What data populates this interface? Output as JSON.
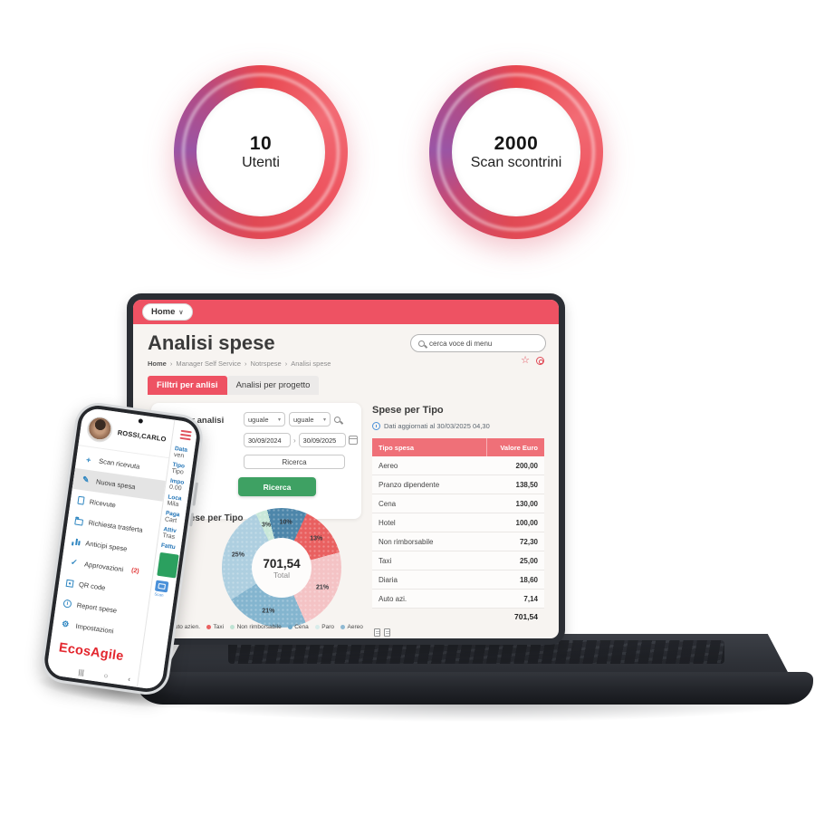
{
  "icons": {
    "star": "☆",
    "home_chevron": "∨",
    "breadcrumb_sep": "›",
    "dropdown_arrow": "▾",
    "date_sep": "›"
  },
  "badges": [
    {
      "value": "10",
      "label": "Utenti"
    },
    {
      "value": "2000",
      "label": "Scan scontrini"
    }
  ],
  "laptop": {
    "home_tab": "Home",
    "title": "Analisi spese",
    "breadcrumb": [
      "Home",
      "Manager Self Service",
      "Notrspese",
      "Analisi spese"
    ],
    "search_placeholder": "cerca voce di menu",
    "tabs": [
      {
        "label": "Filltri per anlisi",
        "active": true
      },
      {
        "label": "Analisi per progetto",
        "active": false
      }
    ],
    "filter_card": {
      "title": "Filtri per analisi",
      "operators": [
        "uguale",
        "uguale"
      ],
      "date_from": "30/09/2024",
      "date_to": "30/09/2025",
      "search_button": "Ricerca",
      "search_button_primary": "Ricerca"
    },
    "chart_heading": "Spese per Tipo",
    "table_panel": {
      "title": "Spese per Tipo",
      "updated": "Dati aggiornati al 30/03/2025 04,30",
      "columns": [
        "Tipo spesa",
        "Valore Euro"
      ],
      "rows": [
        [
          "Aereo",
          "200,00"
        ],
        [
          "Pranzo dipendente",
          "138,50"
        ],
        [
          "Cena",
          "130,00"
        ],
        [
          "Hotel",
          "100,00"
        ],
        [
          "Non rimborsabile",
          "72,30"
        ],
        [
          "Taxi",
          "25,00"
        ],
        [
          "Diaria",
          "18,60"
        ],
        [
          "Auto azi.",
          "7,14"
        ]
      ],
      "total": "701,54"
    }
  },
  "phone": {
    "user_name": "ROSSI,CARLO",
    "menu": [
      {
        "icon": "plus",
        "label": "Scan ricevuta"
      },
      {
        "icon": "compose",
        "label": "Nuova spesa",
        "active": true
      },
      {
        "icon": "document",
        "label": "Ricevute"
      },
      {
        "icon": "folder",
        "label": "Richiesta trasferta"
      },
      {
        "icon": "chart",
        "label": "Anticipi spese"
      },
      {
        "icon": "check",
        "label": "Approvazioni",
        "badge": "(2)"
      },
      {
        "icon": "qr",
        "label": "QR code"
      },
      {
        "icon": "info",
        "label": "Report spese"
      },
      {
        "icon": "gear",
        "label": "Impostazioni"
      }
    ],
    "logo": "EcosAgile",
    "nav": [
      "|||",
      "○",
      "‹"
    ],
    "form_peek": {
      "fields": [
        {
          "label": "Data",
          "value": "ven"
        },
        {
          "label": "Tipo",
          "value": "Tipo"
        },
        {
          "label": "Impo",
          "value": "0.00"
        },
        {
          "label": "Loca",
          "value": "Mila"
        },
        {
          "label": "Paga",
          "value": "Cart"
        },
        {
          "label": "Attiv",
          "value": "Tras"
        },
        {
          "label": "Fattu",
          "value": ""
        }
      ],
      "scan_label": "Scan"
    }
  },
  "chart_data": [
    {
      "type": "donut",
      "title": "Spese per Tipo",
      "center_value": "701,54",
      "center_label": "Total",
      "slices": [
        {
          "pct": 10,
          "color": "#4d86aa"
        },
        {
          "pct": 13,
          "color": "#e96060"
        },
        {
          "pct": 21,
          "color": "#f4c3c5"
        },
        {
          "pct": 21,
          "color": "#84b5cf"
        },
        {
          "pct": 25,
          "color": "#aecfe0"
        },
        {
          "pct": 3,
          "color": "#c9e8d9"
        }
      ],
      "legend": [
        {
          "label": "Auto azien.",
          "color": "#f2b9bc"
        },
        {
          "label": "Taxi",
          "color": "#e96060"
        },
        {
          "label": "Non rimborsabile",
          "color": "#bfe3d4"
        },
        {
          "label": "Cena",
          "color": "#6ea9c9"
        },
        {
          "label": "Paro",
          "color": "#d8ecea"
        },
        {
          "label": "Aereo",
          "color": "#8fb9d2"
        }
      ]
    },
    {
      "type": "table",
      "title": "Spese per Tipo",
      "columns": [
        "Tipo spesa",
        "Valore Euro"
      ],
      "rows": [
        [
          "Aereo",
          200.0
        ],
        [
          "Pranzo dipendente",
          138.5
        ],
        [
          "Cena",
          130.0
        ],
        [
          "Hotel",
          100.0
        ],
        [
          "Non rimborsabile",
          72.3
        ],
        [
          "Taxi",
          25.0
        ],
        [
          "Diaria",
          18.6
        ],
        [
          "Auto azi.",
          7.14
        ]
      ],
      "total": 701.54
    }
  ],
  "colors": {
    "header_red": "#ee5263",
    "table_header_red": "#ef7078",
    "green_button": "#3ea163",
    "logo_red": "#e3262e",
    "blue_label": "#2777b8",
    "ring_red": "#e84750",
    "ring_purple": "#9a55a5"
  }
}
